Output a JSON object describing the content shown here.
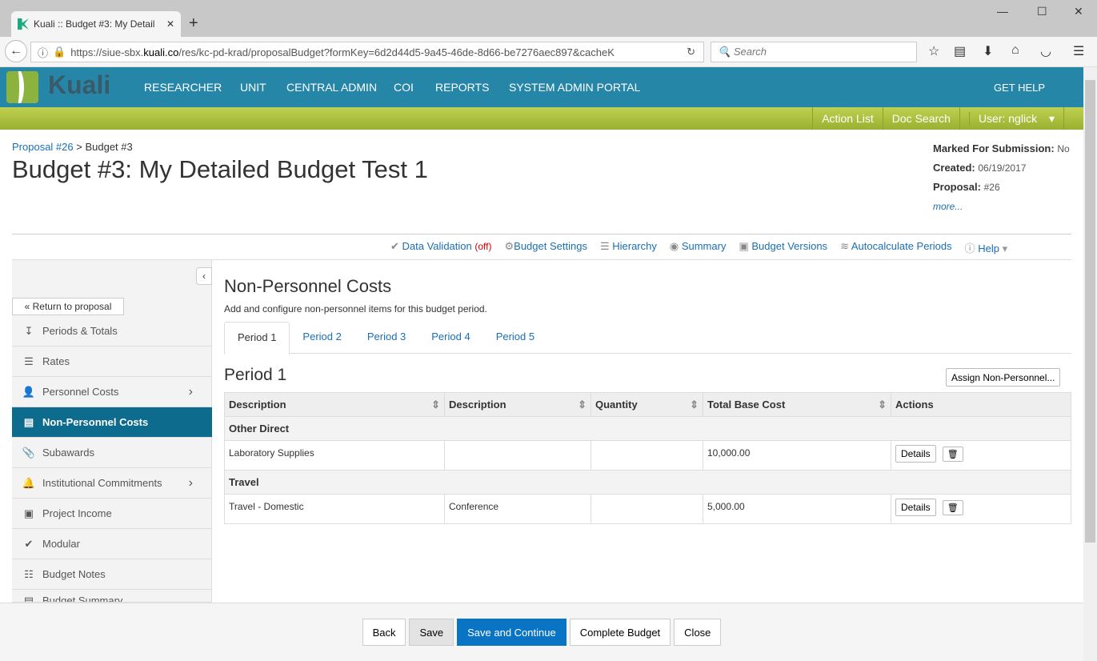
{
  "browser": {
    "tab_title": "Kuali :: Budget #3: My Detail",
    "url_prefix": "https://siue-sbx.",
    "url_domain": "kuali.co",
    "url_rest": "/res/kc-pd-krad/proposalBudget?formKey=6d2d44d5-9a45-46de-8d66-be7276aec897&cacheK",
    "search_placeholder": "Search"
  },
  "nav": {
    "logo": "Kuali",
    "items": [
      "RESEARCHER",
      "UNIT",
      "CENTRAL ADMIN",
      "COI",
      "REPORTS",
      "SYSTEM ADMIN PORTAL"
    ],
    "help": "GET HELP"
  },
  "subnav": {
    "action_list": "Action List",
    "doc_search": "Doc Search",
    "user": "User: nglick"
  },
  "breadcrumb": {
    "proposal": "Proposal #26",
    "sep": " > ",
    "current": "Budget #3"
  },
  "title": "Budget #3: My Detailed Budget Test 1",
  "meta": {
    "marked_label": "Marked For Submission:",
    "marked": "No",
    "created_label": "Created:",
    "created": "06/19/2017",
    "proposal_label": "Proposal:",
    "proposal": "#26",
    "more": "more..."
  },
  "toolbar": {
    "validation": "Data Validation",
    "validation_state": "(off)",
    "settings": "Budget Settings",
    "hierarchy": "Hierarchy",
    "summary": "Summary",
    "versions": "Budget Versions",
    "autocalc": "Autocalculate Periods",
    "help": "Help"
  },
  "sidebar": {
    "return": "« Return to proposal",
    "items": [
      {
        "label": "Periods & Totals",
        "icon": "↧"
      },
      {
        "label": "Rates",
        "icon": "☰"
      },
      {
        "label": "Personnel Costs",
        "icon": "👤"
      },
      {
        "label": "Non-Personnel Costs",
        "icon": "▤"
      },
      {
        "label": "Subawards",
        "icon": "📎"
      },
      {
        "label": "Institutional Commitments",
        "icon": "🔔"
      },
      {
        "label": "Project Income",
        "icon": "▣"
      },
      {
        "label": "Modular",
        "icon": "✔"
      },
      {
        "label": "Budget Notes",
        "icon": "☷"
      },
      {
        "label": "Budget Summary",
        "icon": "▤"
      }
    ]
  },
  "main": {
    "heading": "Non-Personnel Costs",
    "subtitle": "Add and configure non-personnel items for this budget period.",
    "tabs": [
      "Period 1",
      "Period 2",
      "Period 3",
      "Period 4",
      "Period 5"
    ],
    "period_heading": "Period 1",
    "assign": "Assign Non-Personnel...",
    "columns": [
      "Description",
      "Description",
      "Quantity",
      "Total Base Cost",
      "Actions"
    ],
    "groups": [
      {
        "name": "Other Direct",
        "rows": [
          {
            "desc": "Laboratory Supplies",
            "desc2": "",
            "qty": "",
            "cost": "10,000.00"
          }
        ]
      },
      {
        "name": "Travel",
        "rows": [
          {
            "desc": "Travel - Domestic",
            "desc2": "Conference",
            "qty": "",
            "cost": "5,000.00"
          }
        ]
      }
    ],
    "details": "Details"
  },
  "footer": {
    "back": "Back",
    "save": "Save",
    "save_continue": "Save and Continue",
    "complete": "Complete Budget",
    "close": "Close"
  }
}
